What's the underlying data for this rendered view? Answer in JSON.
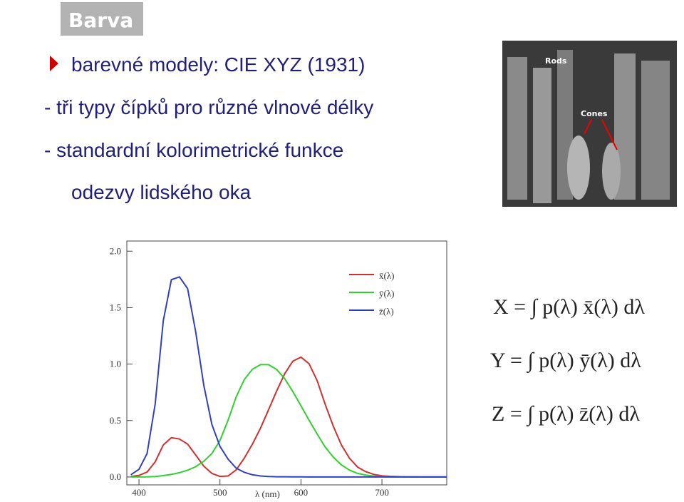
{
  "header": {
    "title": "Barva"
  },
  "bullets": [
    "barevné modely: CIE XYZ (1931)",
    "- tři typy čípků pro různé vlnové délky",
    "- standardní kolorimetrické funkce",
    "odezvy lidského oka"
  ],
  "photo": {
    "labels": [
      "Rods",
      "Cones"
    ]
  },
  "equations": [
    "X = ∫ p(λ) x̄(λ) dλ",
    "Y = ∫ p(λ) ȳ(λ) dλ",
    "Z = ∫ p(λ) z̄(λ) dλ"
  ],
  "chart_data": {
    "type": "line",
    "x_label": "λ (nm)",
    "x": [
      390,
      400,
      410,
      420,
      430,
      440,
      450,
      460,
      470,
      480,
      490,
      500,
      510,
      520,
      530,
      540,
      550,
      560,
      570,
      580,
      590,
      600,
      610,
      620,
      630,
      640,
      650,
      660,
      670,
      680,
      690,
      700,
      710,
      720,
      730,
      740,
      750,
      760,
      770,
      780
    ],
    "series": [
      {
        "name": "x̄(λ)",
        "color": "#d03030",
        "values": [
          0.004,
          0.014,
          0.044,
          0.134,
          0.284,
          0.348,
          0.336,
          0.291,
          0.195,
          0.096,
          0.032,
          0.005,
          0.009,
          0.063,
          0.166,
          0.29,
          0.433,
          0.595,
          0.762,
          0.916,
          1.026,
          1.062,
          1.003,
          0.854,
          0.642,
          0.448,
          0.284,
          0.165,
          0.087,
          0.047,
          0.023,
          0.011,
          0.006,
          0.003,
          0.001,
          0.001,
          0,
          0,
          0,
          0
        ]
      },
      {
        "name": "ȳ(λ)",
        "color": "#30d030",
        "values": [
          0,
          0,
          0.001,
          0.004,
          0.012,
          0.023,
          0.038,
          0.06,
          0.091,
          0.139,
          0.208,
          0.323,
          0.503,
          0.71,
          0.862,
          0.954,
          0.995,
          0.995,
          0.952,
          0.87,
          0.757,
          0.631,
          0.503,
          0.381,
          0.265,
          0.175,
          0.107,
          0.061,
          0.032,
          0.017,
          0.008,
          0.004,
          0.002,
          0.001,
          0.001,
          0,
          0,
          0,
          0,
          0
        ]
      },
      {
        "name": "z̄(λ)",
        "color": "#3040c0",
        "values": [
          0.02,
          0.068,
          0.207,
          0.646,
          1.386,
          1.747,
          1.772,
          1.669,
          1.288,
          0.813,
          0.465,
          0.272,
          0.158,
          0.078,
          0.042,
          0.02,
          0.009,
          0.004,
          0.002,
          0.002,
          0.001,
          0.001,
          0,
          0,
          0,
          0,
          0,
          0,
          0,
          0,
          0,
          0,
          0,
          0,
          0,
          0,
          0,
          0,
          0,
          0
        ]
      }
    ],
    "xlim": [
      385,
      780
    ],
    "ylim": [
      -0.07,
      2.09
    ],
    "xticks": [
      400,
      500,
      600,
      700
    ],
    "yticks": [
      {
        "value": 0,
        "label": "0.0"
      },
      {
        "value": 0.5,
        "label": "0.5"
      },
      {
        "value": 1,
        "label": "1.0"
      },
      {
        "value": 1.5,
        "label": "1.5"
      },
      {
        "value": 2,
        "label": "2.0"
      }
    ]
  }
}
